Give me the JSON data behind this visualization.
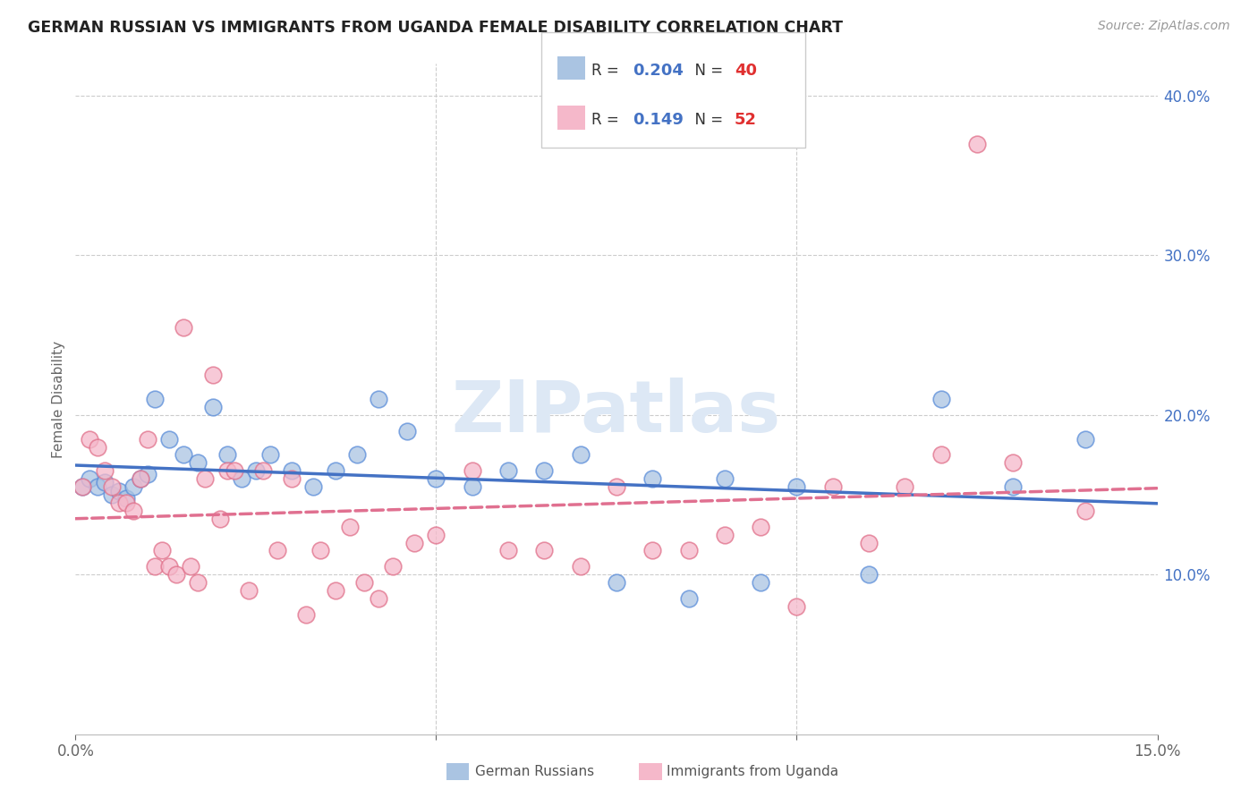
{
  "title": "GERMAN RUSSIAN VS IMMIGRANTS FROM UGANDA FEMALE DISABILITY CORRELATION CHART",
  "source": "Source: ZipAtlas.com",
  "ylabel": "Female Disability",
  "x_min": 0.0,
  "x_max": 0.15,
  "y_min": 0.0,
  "y_max": 0.42,
  "series1_name": "German Russians",
  "series1_color": "#aac4e2",
  "series1_edge_color": "#5b8dd9",
  "series1_line_color": "#4472c4",
  "series1_R": 0.204,
  "series1_N": 40,
  "series2_name": "Immigrants from Uganda",
  "series2_color": "#f5b8ca",
  "series2_edge_color": "#e0708a",
  "series2_line_color": "#e07090",
  "series2_R": 0.149,
  "series2_N": 52,
  "watermark_text": "ZIPatlas",
  "series1_x": [
    0.001,
    0.002,
    0.003,
    0.004,
    0.005,
    0.006,
    0.007,
    0.008,
    0.009,
    0.01,
    0.011,
    0.013,
    0.015,
    0.017,
    0.019,
    0.021,
    0.023,
    0.025,
    0.027,
    0.03,
    0.033,
    0.036,
    0.039,
    0.042,
    0.046,
    0.05,
    0.055,
    0.06,
    0.065,
    0.07,
    0.075,
    0.08,
    0.085,
    0.09,
    0.095,
    0.1,
    0.11,
    0.12,
    0.13,
    0.14
  ],
  "series1_y": [
    0.155,
    0.16,
    0.155,
    0.158,
    0.15,
    0.152,
    0.148,
    0.155,
    0.16,
    0.163,
    0.21,
    0.185,
    0.175,
    0.17,
    0.205,
    0.175,
    0.16,
    0.165,
    0.175,
    0.165,
    0.155,
    0.165,
    0.175,
    0.21,
    0.19,
    0.16,
    0.155,
    0.165,
    0.165,
    0.175,
    0.095,
    0.16,
    0.085,
    0.16,
    0.095,
    0.155,
    0.1,
    0.21,
    0.155,
    0.185
  ],
  "series2_x": [
    0.001,
    0.002,
    0.003,
    0.004,
    0.005,
    0.006,
    0.007,
    0.008,
    0.009,
    0.01,
    0.011,
    0.012,
    0.013,
    0.014,
    0.015,
    0.016,
    0.017,
    0.018,
    0.019,
    0.02,
    0.021,
    0.022,
    0.024,
    0.026,
    0.028,
    0.03,
    0.032,
    0.034,
    0.036,
    0.038,
    0.04,
    0.042,
    0.044,
    0.047,
    0.05,
    0.055,
    0.06,
    0.065,
    0.07,
    0.075,
    0.08,
    0.085,
    0.09,
    0.095,
    0.1,
    0.105,
    0.11,
    0.115,
    0.12,
    0.125,
    0.13,
    0.14
  ],
  "series2_y": [
    0.155,
    0.185,
    0.18,
    0.165,
    0.155,
    0.145,
    0.145,
    0.14,
    0.16,
    0.185,
    0.105,
    0.115,
    0.105,
    0.1,
    0.255,
    0.105,
    0.095,
    0.16,
    0.225,
    0.135,
    0.165,
    0.165,
    0.09,
    0.165,
    0.115,
    0.16,
    0.075,
    0.115,
    0.09,
    0.13,
    0.095,
    0.085,
    0.105,
    0.12,
    0.125,
    0.165,
    0.115,
    0.115,
    0.105,
    0.155,
    0.115,
    0.115,
    0.125,
    0.13,
    0.08,
    0.155,
    0.12,
    0.155,
    0.175,
    0.37,
    0.17,
    0.14
  ]
}
